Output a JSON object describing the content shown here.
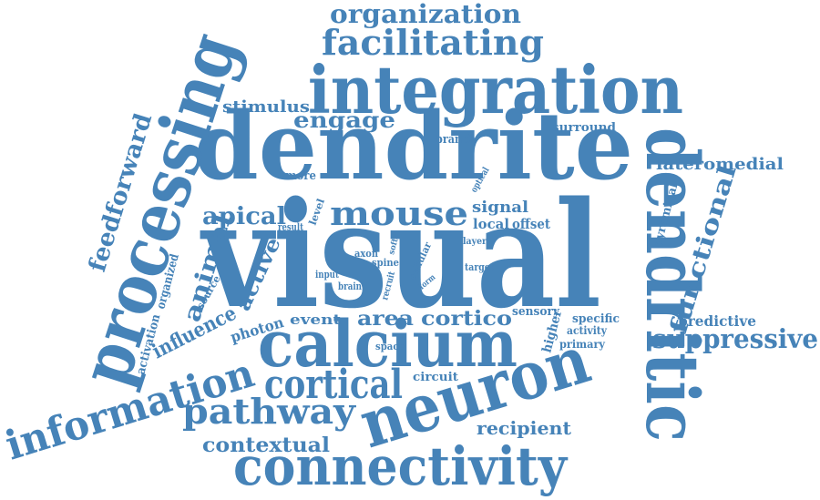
{
  "color": "#4683B8",
  "words": {
    "visual": "visual",
    "dendrite": "dendrite",
    "integration": "integration",
    "processing": "processing",
    "dendritic": "dendritic",
    "calcium": "calcium",
    "neuron": "neuron",
    "connectivity": "connectivity",
    "information": "information",
    "cortical": "cortical",
    "pathway": "pathway",
    "facilitating": "facilitating",
    "organization": "organization",
    "mouse": "mouse",
    "functional": "functional",
    "suppressive": "suppressive",
    "feedforward": "feedforward",
    "animal": "animal",
    "influence": "influence",
    "apical": "apical",
    "engage": "engage",
    "stimulus": "stimulus",
    "contextual": "contextual",
    "recipient": "recipient",
    "lateromedial": "lateromedial",
    "predictive": "predictive",
    "cortico": "cortico",
    "area": "area",
    "active": "active",
    "photon": "photon",
    "event": "event",
    "signal": "signal",
    "local": "local",
    "offset": "offset",
    "surround": "surround",
    "pyramidal": "pyramidal",
    "higher": "higher",
    "specific": "specific",
    "activity": "activity",
    "primary": "primary",
    "sensory": "sensory",
    "circuit": "circuit",
    "space": "space",
    "activation": "activation",
    "organized": "organized",
    "source": "source",
    "more": "more",
    "branch": "branch",
    "optical": "optical",
    "result": "result",
    "level": "level",
    "axon": "axon",
    "spine": "spine",
    "input": "input",
    "brain": "brain",
    "recruit": "recruit",
    "soft": "soft",
    "cellular": "cellular",
    "form": "form",
    "layer": "layer",
    "target": "target"
  }
}
